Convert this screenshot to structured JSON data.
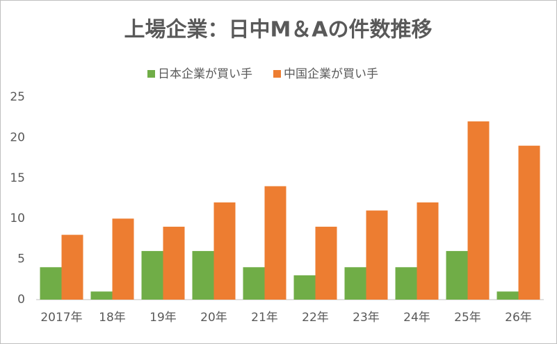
{
  "chart_data": {
    "type": "bar",
    "title": "上場企業：日中M＆Aの件数推移",
    "categories": [
      "2017年",
      "18年",
      "19年",
      "20年",
      "21年",
      "22年",
      "23年",
      "24年",
      "25年",
      "26年"
    ],
    "series": [
      {
        "name": "日本企業が買い手",
        "color": "#70ad47",
        "values": [
          4,
          1,
          6,
          6,
          4,
          3,
          4,
          4,
          6,
          1
        ]
      },
      {
        "name": "中国企業が買い手",
        "color": "#ed7d31",
        "values": [
          8,
          10,
          9,
          12,
          14,
          9,
          11,
          12,
          22,
          19
        ]
      }
    ],
    "ylim": [
      0,
      25
    ],
    "yticks": [
      0,
      5,
      10,
      15,
      20,
      25
    ],
    "grid": false,
    "legend": "top"
  }
}
